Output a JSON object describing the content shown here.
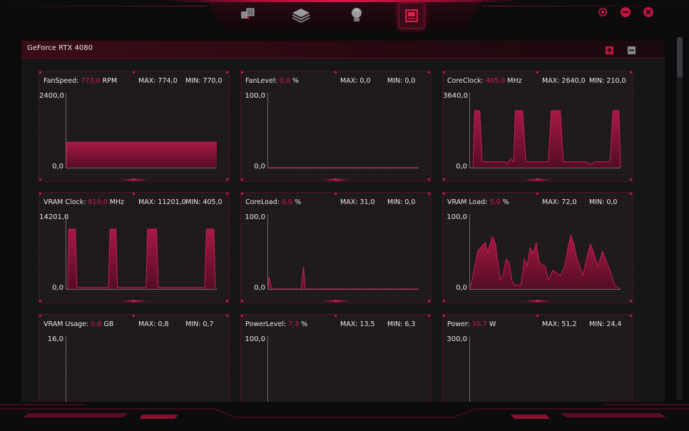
{
  "toolbar": {
    "nav_icons": [
      "dashboard-icon",
      "layers-icon",
      "lightbulb-icon",
      "monitor-icon"
    ],
    "active": "monitor-icon",
    "window_icons": [
      "gear-icon",
      "minimize-icon",
      "close-icon"
    ],
    "accent": "#d81c50"
  },
  "panel": {
    "title": "GeForce RTX 4080"
  },
  "cards": [
    {
      "label": "FanSpeed",
      "value": "773,0",
      "unit": "RPM",
      "max": "MAX: 774,0",
      "min": "MIN: 770,0",
      "ymax": "2400,0",
      "ymin": "0,0",
      "series": [
        [
          0,
          0
        ],
        [
          0.001,
          34
        ],
        [
          1,
          34
        ]
      ]
    },
    {
      "label": "FanLevel",
      "value": "0,0",
      "unit": "%",
      "max": "MAX: 0,0",
      "min": "MIN: 0,0",
      "ymax": "100,0",
      "ymin": "0,0",
      "series": [
        [
          0,
          0
        ],
        [
          1,
          0
        ]
      ]
    },
    {
      "label": "CoreClock",
      "value": "405,0",
      "unit": "MHz",
      "max": "MAX: 2640,0",
      "min": "MIN: 210,0",
      "ymax": "3640,0",
      "ymin": "0,0",
      "series": [
        [
          0,
          0
        ],
        [
          0.02,
          0
        ],
        [
          0.03,
          76
        ],
        [
          0.065,
          76
        ],
        [
          0.08,
          8
        ],
        [
          0.23,
          8
        ],
        [
          0.25,
          5
        ],
        [
          0.27,
          12
        ],
        [
          0.29,
          8
        ],
        [
          0.3,
          76
        ],
        [
          0.35,
          76
        ],
        [
          0.37,
          8
        ],
        [
          0.52,
          8
        ],
        [
          0.54,
          76
        ],
        [
          0.6,
          76
        ],
        [
          0.62,
          8
        ],
        [
          0.77,
          8
        ],
        [
          0.8,
          4
        ],
        [
          0.83,
          8
        ],
        [
          0.93,
          8
        ],
        [
          0.95,
          76
        ],
        [
          0.99,
          76
        ],
        [
          1,
          0
        ]
      ]
    },
    {
      "label": "VRAM Clock",
      "value": "810,0",
      "unit": "MHz",
      "max": "MAX: 11201,0",
      "min": "MIN: 405,0",
      "ymax": "14201,0",
      "ymin": "0,0",
      "series": [
        [
          0,
          0
        ],
        [
          0.01,
          0
        ],
        [
          0.015,
          80
        ],
        [
          0.06,
          80
        ],
        [
          0.07,
          2
        ],
        [
          0.28,
          2
        ],
        [
          0.29,
          80
        ],
        [
          0.33,
          80
        ],
        [
          0.34,
          2
        ],
        [
          0.53,
          2
        ],
        [
          0.54,
          80
        ],
        [
          0.6,
          80
        ],
        [
          0.61,
          2
        ],
        [
          0.92,
          2
        ],
        [
          0.93,
          80
        ],
        [
          0.98,
          80
        ],
        [
          0.99,
          2
        ],
        [
          1,
          0
        ]
      ]
    },
    {
      "label": "CoreLoad",
      "value": "0,0",
      "unit": "%",
      "max": "MAX: 31,0",
      "min": "MIN: 0,0",
      "ymax": "100,0",
      "ymin": "0,0",
      "series": [
        [
          0,
          0
        ],
        [
          0.005,
          16
        ],
        [
          0.02,
          2
        ],
        [
          0.03,
          0
        ],
        [
          0.22,
          0
        ],
        [
          0.235,
          30
        ],
        [
          0.245,
          0
        ],
        [
          1,
          0
        ]
      ]
    },
    {
      "label": "VRAM Load",
      "value": "5,0",
      "unit": "%",
      "max": "MAX: 72,0",
      "min": "MIN: 0,0",
      "ymax": "100,0",
      "ymin": "0,0",
      "series": [
        [
          0,
          0
        ],
        [
          0.02,
          18
        ],
        [
          0.05,
          50
        ],
        [
          0.07,
          55
        ],
        [
          0.1,
          62
        ],
        [
          0.12,
          48
        ],
        [
          0.13,
          58
        ],
        [
          0.15,
          70
        ],
        [
          0.17,
          60
        ],
        [
          0.18,
          42
        ],
        [
          0.19,
          30
        ],
        [
          0.2,
          12
        ],
        [
          0.22,
          20
        ],
        [
          0.24,
          40
        ],
        [
          0.26,
          35
        ],
        [
          0.28,
          10
        ],
        [
          0.3,
          5
        ],
        [
          0.34,
          5
        ],
        [
          0.36,
          40
        ],
        [
          0.38,
          32
        ],
        [
          0.4,
          55
        ],
        [
          0.42,
          48
        ],
        [
          0.44,
          62
        ],
        [
          0.46,
          35
        ],
        [
          0.5,
          30
        ],
        [
          0.52,
          12
        ],
        [
          0.55,
          25
        ],
        [
          0.6,
          18
        ],
        [
          0.63,
          30
        ],
        [
          0.65,
          55
        ],
        [
          0.67,
          72
        ],
        [
          0.69,
          60
        ],
        [
          0.71,
          40
        ],
        [
          0.73,
          30
        ],
        [
          0.75,
          18
        ],
        [
          0.78,
          45
        ],
        [
          0.8,
          60
        ],
        [
          0.82,
          50
        ],
        [
          0.85,
          30
        ],
        [
          0.88,
          50
        ],
        [
          0.9,
          40
        ],
        [
          0.93,
          25
        ],
        [
          0.96,
          5
        ],
        [
          1,
          0
        ]
      ]
    },
    {
      "label": "VRAM Usage",
      "value": "0,8",
      "unit": "GB",
      "max": "MAX: 0,8",
      "min": "MIN: 0,7",
      "ymax": "16,0",
      "ymin": "0,0",
      "series": [
        [
          0,
          0
        ],
        [
          1,
          0
        ]
      ]
    },
    {
      "label": "PowerLevel",
      "value": "7,3",
      "unit": "%",
      "max": "MAX: 13,5",
      "min": "MIN: 6,3",
      "ymax": "100,0",
      "ymin": "0,0",
      "series": [
        [
          0,
          0
        ],
        [
          1,
          0
        ]
      ]
    },
    {
      "label": "Power",
      "value": "30,7",
      "unit": "W",
      "max": "MAX: 51,2",
      "min": "MIN: 24,4",
      "ymax": "300,0",
      "ymin": "0,0",
      "series": [
        [
          0,
          0
        ],
        [
          1,
          0
        ]
      ]
    }
  ]
}
